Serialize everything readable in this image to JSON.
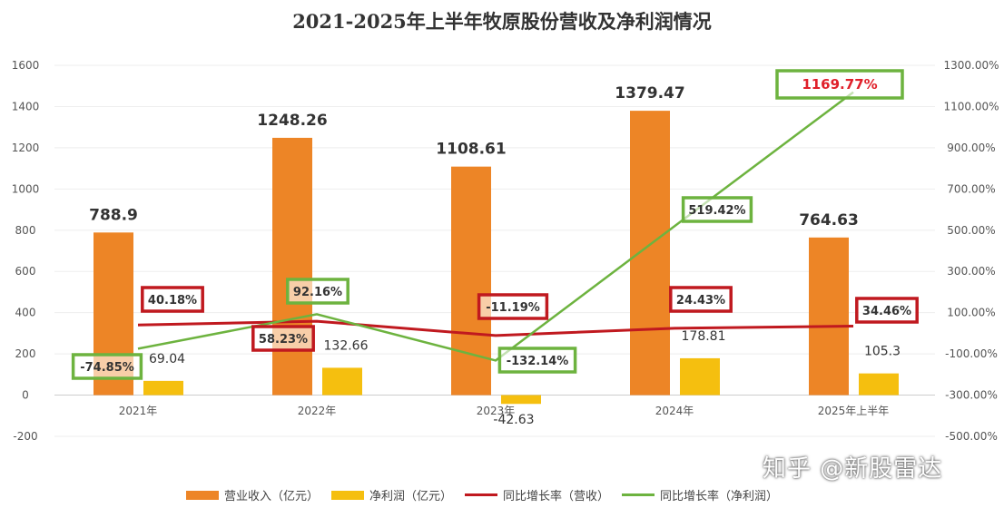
{
  "chart_data": {
    "type": "bar+line",
    "title": "2021-2025年上半年牧原股份营收及净利润情况",
    "categories": [
      "2021年",
      "2022年",
      "2023年",
      "2024年",
      "2025年上半年"
    ],
    "left_axis": {
      "ylim": [
        -200,
        1600
      ],
      "ticks": [
        -200,
        0,
        200,
        400,
        600,
        800,
        1000,
        1200,
        1400,
        1600
      ]
    },
    "right_axis": {
      "ylim": [
        -500,
        1300
      ],
      "ticks": [
        "-500.00%",
        "-300.00%",
        "-100.00%",
        "100.00%",
        "300.00%",
        "500.00%",
        "700.00%",
        "900.00%",
        "1100.00%",
        "1300.00%"
      ]
    },
    "grid": true,
    "legend_position": "bottom",
    "series": [
      {
        "name": "营业收入（亿元）",
        "type": "bar",
        "axis": "left",
        "color": "#ED8526",
        "values": [
          788.9,
          1248.26,
          1108.61,
          1379.47,
          764.63
        ],
        "labels": [
          "788.9",
          "1248.26",
          "1108.61",
          "1379.47",
          "764.63"
        ]
      },
      {
        "name": "净利润（亿元）",
        "type": "bar",
        "axis": "left",
        "color": "#F5BF0F",
        "values": [
          69.04,
          132.66,
          -42.63,
          178.81,
          105.3
        ],
        "labels": [
          "69.04",
          "132.66",
          "-42.63",
          "178.81",
          "105.3"
        ]
      },
      {
        "name": "同比增长率（营收）",
        "type": "line",
        "axis": "right",
        "color": "#C0191F",
        "values": [
          40.18,
          58.23,
          -11.19,
          24.43,
          34.46
        ],
        "labels": [
          "40.18%",
          "58.23%",
          "-11.19%",
          "24.43%",
          "34.46%"
        ]
      },
      {
        "name": "同比增长率（净利润）",
        "type": "line",
        "axis": "right",
        "color": "#6DB33F",
        "values": [
          -74.85,
          92.16,
          -132.14,
          519.42,
          1169.77
        ],
        "labels": [
          "-74.85%",
          "92.16%",
          "-132.14%",
          "519.42%",
          "1169.77%"
        ]
      }
    ]
  },
  "watermark": "知乎 @新股雷达"
}
